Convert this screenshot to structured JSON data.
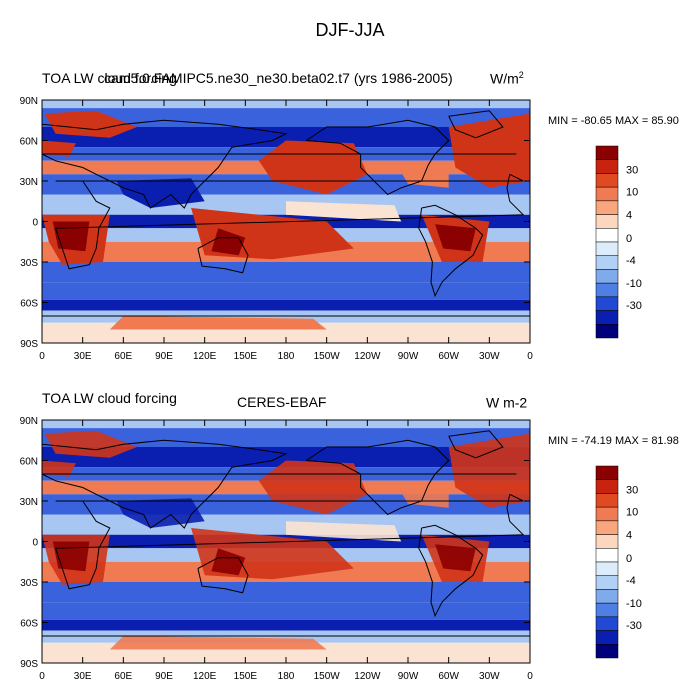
{
  "title": "DJF-JJA",
  "panels": [
    {
      "left_title": "TOA LW cloud forcing",
      "center_title": "cam5.0.FAMIPC5.ne30_ne30.beta02.t7 (yrs 1986-2005)",
      "units_base": "W/m",
      "units_sup": "2",
      "minmax": "MIN = -80.65 MAX =  85.90"
    },
    {
      "left_title": "TOA LW cloud forcing",
      "center_title": "CERES-EBAF",
      "units_base": "W m-2",
      "units_sup": "",
      "minmax": "MIN = -74.19 MAX =  81.98"
    }
  ],
  "lat_labels": [
    "90N",
    "60N",
    "30N",
    "0",
    "30S",
    "60S",
    "90S"
  ],
  "lon_labels": [
    "0",
    "30E",
    "60E",
    "90E",
    "120E",
    "150E",
    "180",
    "150W",
    "120W",
    "90W",
    "60W",
    "30W",
    "0"
  ],
  "colorbar": {
    "labels": [
      "30",
      "10",
      "4",
      "0",
      "-4",
      "-10",
      "-30"
    ],
    "colors": [
      "#8b0000",
      "#c8230e",
      "#e04a22",
      "#f07a52",
      "#f7a67d",
      "#fcd6bd",
      "#ffffff",
      "#dcecfa",
      "#b0d0f4",
      "#7fabec",
      "#4d7fe4",
      "#2149d4",
      "#0a1fb0",
      "#00007a"
    ]
  },
  "colors": {
    "deep_blue": "#0a1fb0",
    "blue": "#3a62dc",
    "light_blue": "#a8c6f2",
    "pale": "#fbe3d3",
    "orange": "#f07a52",
    "red": "#d03418",
    "dark_red": "#8b0000"
  }
}
